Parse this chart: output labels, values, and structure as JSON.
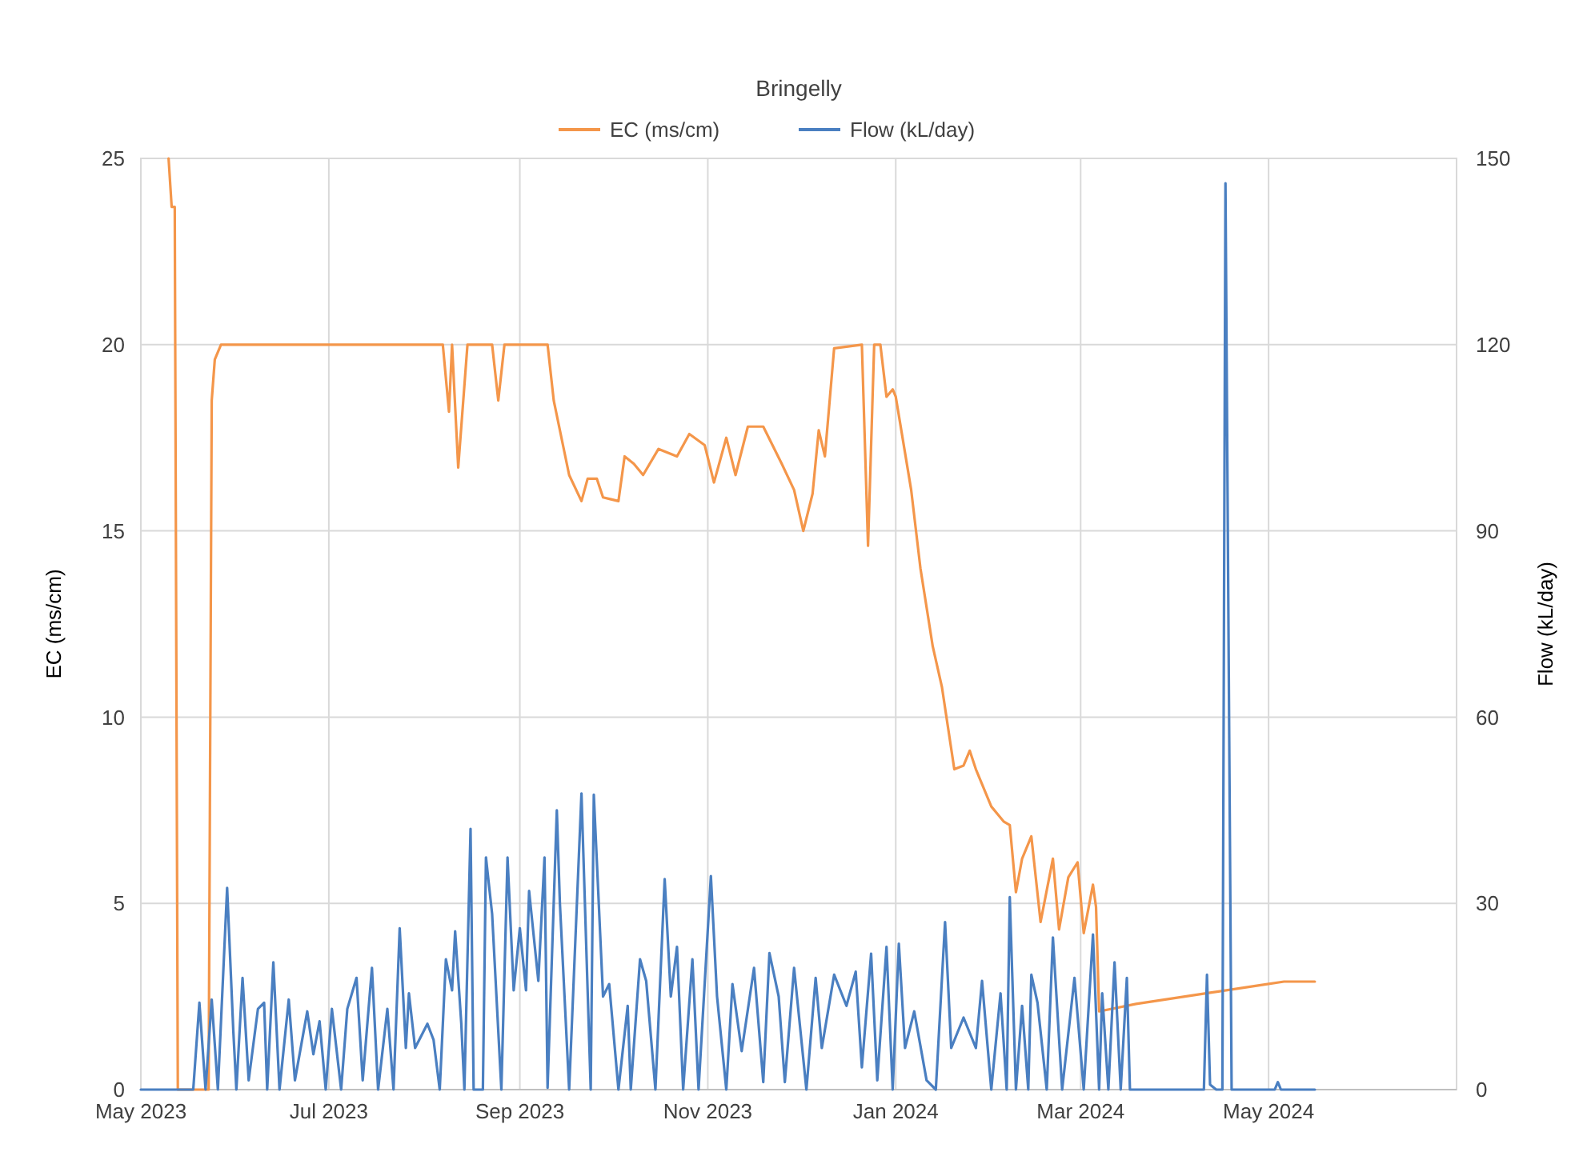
{
  "chart_data": {
    "type": "line",
    "title": "Bringelly",
    "ylabel": "EC (ms/cm)",
    "y2label": "Flow (kL/day)",
    "xlim": [
      "2023-05-01",
      "2024-07-01"
    ],
    "xticks": [
      {
        "value": "2023-05-01",
        "label": "May 2023"
      },
      {
        "value": "2023-07-01",
        "label": "Jul 2023"
      },
      {
        "value": "2023-09-01",
        "label": "Sep 2023"
      },
      {
        "value": "2023-11-01",
        "label": "Nov 2023"
      },
      {
        "value": "2024-01-01",
        "label": "Jan 2024"
      },
      {
        "value": "2024-03-01",
        "label": "Mar 2024"
      },
      {
        "value": "2024-05-01",
        "label": "May 2024"
      },
      {
        "value": "2024-07-01",
        "label": null
      }
    ],
    "ylim": [
      0,
      25
    ],
    "yticks": [
      0,
      5,
      10,
      15,
      20,
      25
    ],
    "y2lim": [
      0,
      150
    ],
    "y2ticks": [
      0,
      30,
      60,
      90,
      120,
      150
    ],
    "grid": true,
    "legend": "top",
    "marker": "none",
    "line_style": "solid",
    "series": [
      {
        "name": "EC (ms/cm)",
        "color": "#f4964a",
        "x": [
          "2023-05-10",
          "2023-05-11",
          "2023-05-12",
          "2023-05-13",
          "2023-05-23",
          "2023-05-24",
          "2023-05-25",
          "2023-05-26",
          "2023-05-27",
          "2023-08-07",
          "2023-08-09",
          "2023-08-10",
          "2023-08-12",
          "2023-08-15",
          "2023-08-23",
          "2023-08-25",
          "2023-08-27",
          "2023-09-10",
          "2023-09-12",
          "2023-09-17",
          "2023-09-21",
          "2023-09-23",
          "2023-09-26",
          "2023-09-28",
          "2023-10-03",
          "2023-10-05",
          "2023-10-08",
          "2023-10-11",
          "2023-10-16",
          "2023-10-22",
          "2023-10-26",
          "2023-10-31",
          "2023-11-03",
          "2023-11-07",
          "2023-11-10",
          "2023-11-14",
          "2023-11-19",
          "2023-11-25",
          "2023-11-29",
          "2023-12-02",
          "2023-12-05",
          "2023-12-07",
          "2023-12-09",
          "2023-12-12",
          "2023-12-21",
          "2023-12-23",
          "2023-12-25",
          "2023-12-27",
          "2023-12-29",
          "2023-12-31",
          "2024-01-01",
          "2024-01-06",
          "2024-01-09",
          "2024-01-13",
          "2024-01-16",
          "2024-01-20",
          "2024-01-23",
          "2024-01-25",
          "2024-01-27",
          "2024-02-01",
          "2024-02-05",
          "2024-02-07",
          "2024-02-09",
          "2024-02-11",
          "2024-02-14",
          "2024-02-17",
          "2024-02-21",
          "2024-02-23",
          "2024-02-26",
          "2024-02-29",
          "2024-03-02",
          "2024-03-05",
          "2024-03-06",
          "2024-03-07",
          "2024-03-19",
          "2024-04-12",
          "2024-04-28",
          "2024-05-06",
          "2024-05-16"
        ],
        "values": [
          25,
          23.7,
          23.7,
          0,
          0,
          18.5,
          19.6,
          19.8,
          20,
          20,
          18.2,
          20,
          16.7,
          20,
          20,
          18.5,
          20,
          20,
          18.5,
          16.5,
          15.8,
          16.4,
          16.4,
          15.9,
          15.8,
          17.0,
          16.8,
          16.5,
          17.2,
          17.0,
          17.6,
          17.3,
          16.3,
          17.5,
          16.5,
          17.8,
          17.8,
          16.8,
          16.1,
          15.0,
          16.0,
          17.7,
          17.0,
          19.9,
          20,
          14.6,
          20,
          20,
          18.6,
          18.8,
          18.6,
          16.1,
          14.0,
          11.9,
          10.8,
          8.6,
          8.7,
          9.1,
          8.6,
          7.6,
          7.2,
          7.1,
          5.3,
          6.2,
          6.8,
          4.5,
          6.2,
          4.3,
          5.7,
          6.1,
          4.2,
          5.5,
          4.9,
          2.1,
          2.3,
          2.6,
          2.8,
          2.9,
          2.9
        ]
      },
      {
        "name": "Flow (kL/day)",
        "color": "#4a7fc1",
        "axis": "y2",
        "x": [
          "2023-05-01",
          "2023-05-18",
          "2023-05-20",
          "2023-05-22",
          "2023-05-24",
          "2023-05-26",
          "2023-05-29",
          "2023-05-31",
          "2023-06-01",
          "2023-06-03",
          "2023-06-05",
          "2023-06-08",
          "2023-06-10",
          "2023-06-11",
          "2023-06-13",
          "2023-06-15",
          "2023-06-18",
          "2023-06-20",
          "2023-06-24",
          "2023-06-26",
          "2023-06-28",
          "2023-06-30",
          "2023-07-02",
          "2023-07-05",
          "2023-07-07",
          "2023-07-10",
          "2023-07-12",
          "2023-07-15",
          "2023-07-17",
          "2023-07-20",
          "2023-07-22",
          "2023-07-24",
          "2023-07-26",
          "2023-07-27",
          "2023-07-29",
          "2023-08-02",
          "2023-08-04",
          "2023-08-06",
          "2023-08-08",
          "2023-08-10",
          "2023-08-11",
          "2023-08-13",
          "2023-08-14",
          "2023-08-16",
          "2023-08-17",
          "2023-08-20",
          "2023-08-21",
          "2023-08-23",
          "2023-08-26",
          "2023-08-28",
          "2023-08-30",
          "2023-09-01",
          "2023-09-03",
          "2023-09-04",
          "2023-09-07",
          "2023-09-09",
          "2023-09-10",
          "2023-09-13",
          "2023-09-14",
          "2023-09-17",
          "2023-09-21",
          "2023-09-24",
          "2023-09-25",
          "2023-09-28",
          "2023-09-30",
          "2023-10-03",
          "2023-10-06",
          "2023-10-07",
          "2023-10-10",
          "2023-10-12",
          "2023-10-15",
          "2023-10-18",
          "2023-10-20",
          "2023-10-22",
          "2023-10-24",
          "2023-10-27",
          "2023-10-29",
          "2023-11-02",
          "2023-11-04",
          "2023-11-07",
          "2023-11-09",
          "2023-11-12",
          "2023-11-16",
          "2023-11-19",
          "2023-11-21",
          "2023-11-24",
          "2023-11-26",
          "2023-11-29",
          "2023-12-03",
          "2023-12-06",
          "2023-12-08",
          "2023-12-12",
          "2023-12-16",
          "2023-12-19",
          "2023-12-21",
          "2023-12-24",
          "2023-12-26",
          "2023-12-29",
          "2023-12-31",
          "2024-01-02",
          "2024-01-04",
          "2024-01-07",
          "2024-01-11",
          "2024-01-14",
          "2024-01-17",
          "2024-01-19",
          "2024-01-23",
          "2024-01-27",
          "2024-01-29",
          "2024-02-01",
          "2024-02-04",
          "2024-02-06",
          "2024-02-07",
          "2024-02-09",
          "2024-02-11",
          "2024-02-13",
          "2024-02-14",
          "2024-02-16",
          "2024-02-19",
          "2024-02-21",
          "2024-02-24",
          "2024-02-28",
          "2024-03-02",
          "2024-03-05",
          "2024-03-07",
          "2024-03-08",
          "2024-03-10",
          "2024-03-12",
          "2024-03-14",
          "2024-03-16",
          "2024-03-17",
          "2024-04-10",
          "2024-04-11",
          "2024-04-12",
          "2024-04-14",
          "2024-04-16",
          "2024-04-17",
          "2024-04-19",
          "2024-05-03",
          "2024-05-04",
          "2024-05-05",
          "2024-05-16"
        ],
        "values": [
          0,
          0,
          14,
          0,
          14.5,
          0,
          32.5,
          9.5,
          0,
          18,
          1.5,
          13,
          14,
          0,
          20.5,
          0,
          14.5,
          1.5,
          12.6,
          5.7,
          11,
          0,
          13,
          0,
          13,
          18,
          1.5,
          19.6,
          0,
          13,
          0,
          26,
          6.7,
          15.5,
          6.7,
          10.6,
          8,
          0,
          21,
          16,
          25.5,
          10.6,
          0,
          42,
          0,
          0,
          37.4,
          28.3,
          0,
          37.4,
          16,
          26,
          16,
          32,
          17.5,
          37.4,
          0.3,
          45,
          30,
          0,
          47.7,
          0,
          47.5,
          15,
          17,
          0,
          13.5,
          0,
          21,
          17.5,
          0,
          33.9,
          15,
          23,
          0,
          21,
          0,
          34.4,
          15,
          0,
          17,
          6.2,
          19.6,
          1.2,
          22,
          15,
          1.2,
          19.6,
          0,
          18,
          6.7,
          18.5,
          13.5,
          19,
          3.6,
          21.9,
          1.5,
          23,
          0,
          23.5,
          6.7,
          12.6,
          1.5,
          0,
          27,
          6.7,
          11.6,
          6.7,
          17.5,
          0,
          15.5,
          0,
          31,
          0,
          13.5,
          0,
          18.5,
          14,
          0,
          24.5,
          0,
          18,
          0,
          25,
          0,
          15.5,
          0,
          20.5,
          0,
          18,
          0,
          0,
          18.5,
          0.8,
          0,
          0,
          146,
          0,
          0,
          1.2,
          0,
          0
        ]
      }
    ]
  }
}
